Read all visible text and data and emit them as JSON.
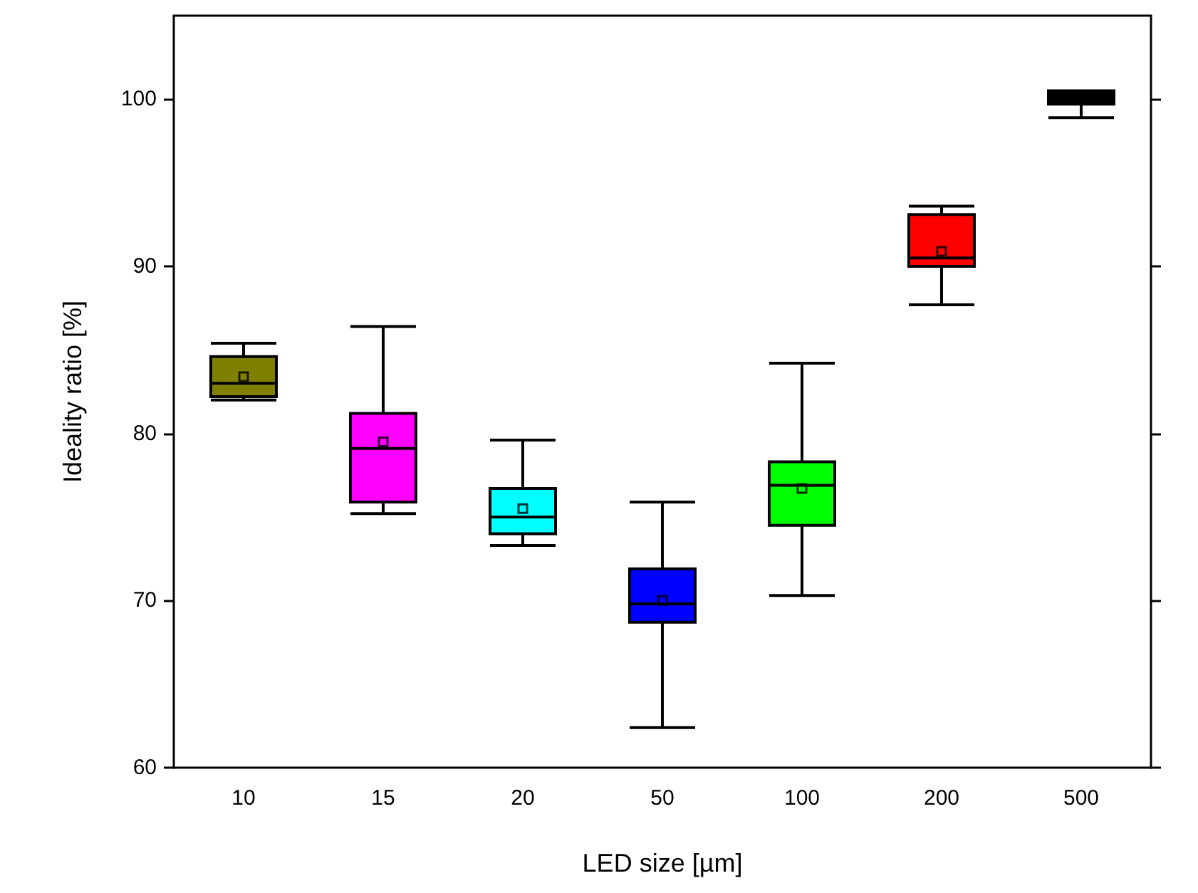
{
  "chart_data": {
    "type": "box",
    "xlabel": "LED size [µm]",
    "ylabel": "Ideality ratio [%]",
    "categories": [
      "10",
      "15",
      "20",
      "50",
      "100",
      "200",
      "500"
    ],
    "colors": [
      "#808000",
      "#ff00ff",
      "#00ffff",
      "#0000ff",
      "#00ff00",
      "#ff0000",
      "#000000"
    ],
    "boxes": [
      {
        "low": 82.0,
        "q1": 82.2,
        "median": 83.0,
        "q3": 84.6,
        "high": 85.4,
        "mean": 83.4
      },
      {
        "low": 75.2,
        "q1": 75.9,
        "median": 79.1,
        "q3": 81.2,
        "high": 86.4,
        "mean": 79.5
      },
      {
        "low": 73.3,
        "q1": 74.0,
        "median": 75.0,
        "q3": 76.7,
        "high": 79.6,
        "mean": 75.5
      },
      {
        "low": 62.4,
        "q1": 68.7,
        "median": 69.8,
        "q3": 71.9,
        "high": 75.9,
        "mean": 70.0
      },
      {
        "low": 70.3,
        "q1": 74.5,
        "median": 76.9,
        "q3": 78.3,
        "high": 84.2,
        "mean": 76.7
      },
      {
        "low": 87.7,
        "q1": 90.0,
        "median": 90.5,
        "q3": 93.1,
        "high": 93.6,
        "mean": 90.9
      },
      {
        "low": 98.9,
        "q1": 99.7,
        "median": 100.0,
        "q3": 100.5,
        "high": 100.5
      }
    ],
    "ylim": [
      60,
      105
    ],
    "yticks": [
      60,
      70,
      80,
      90,
      100
    ],
    "marker": "square"
  }
}
